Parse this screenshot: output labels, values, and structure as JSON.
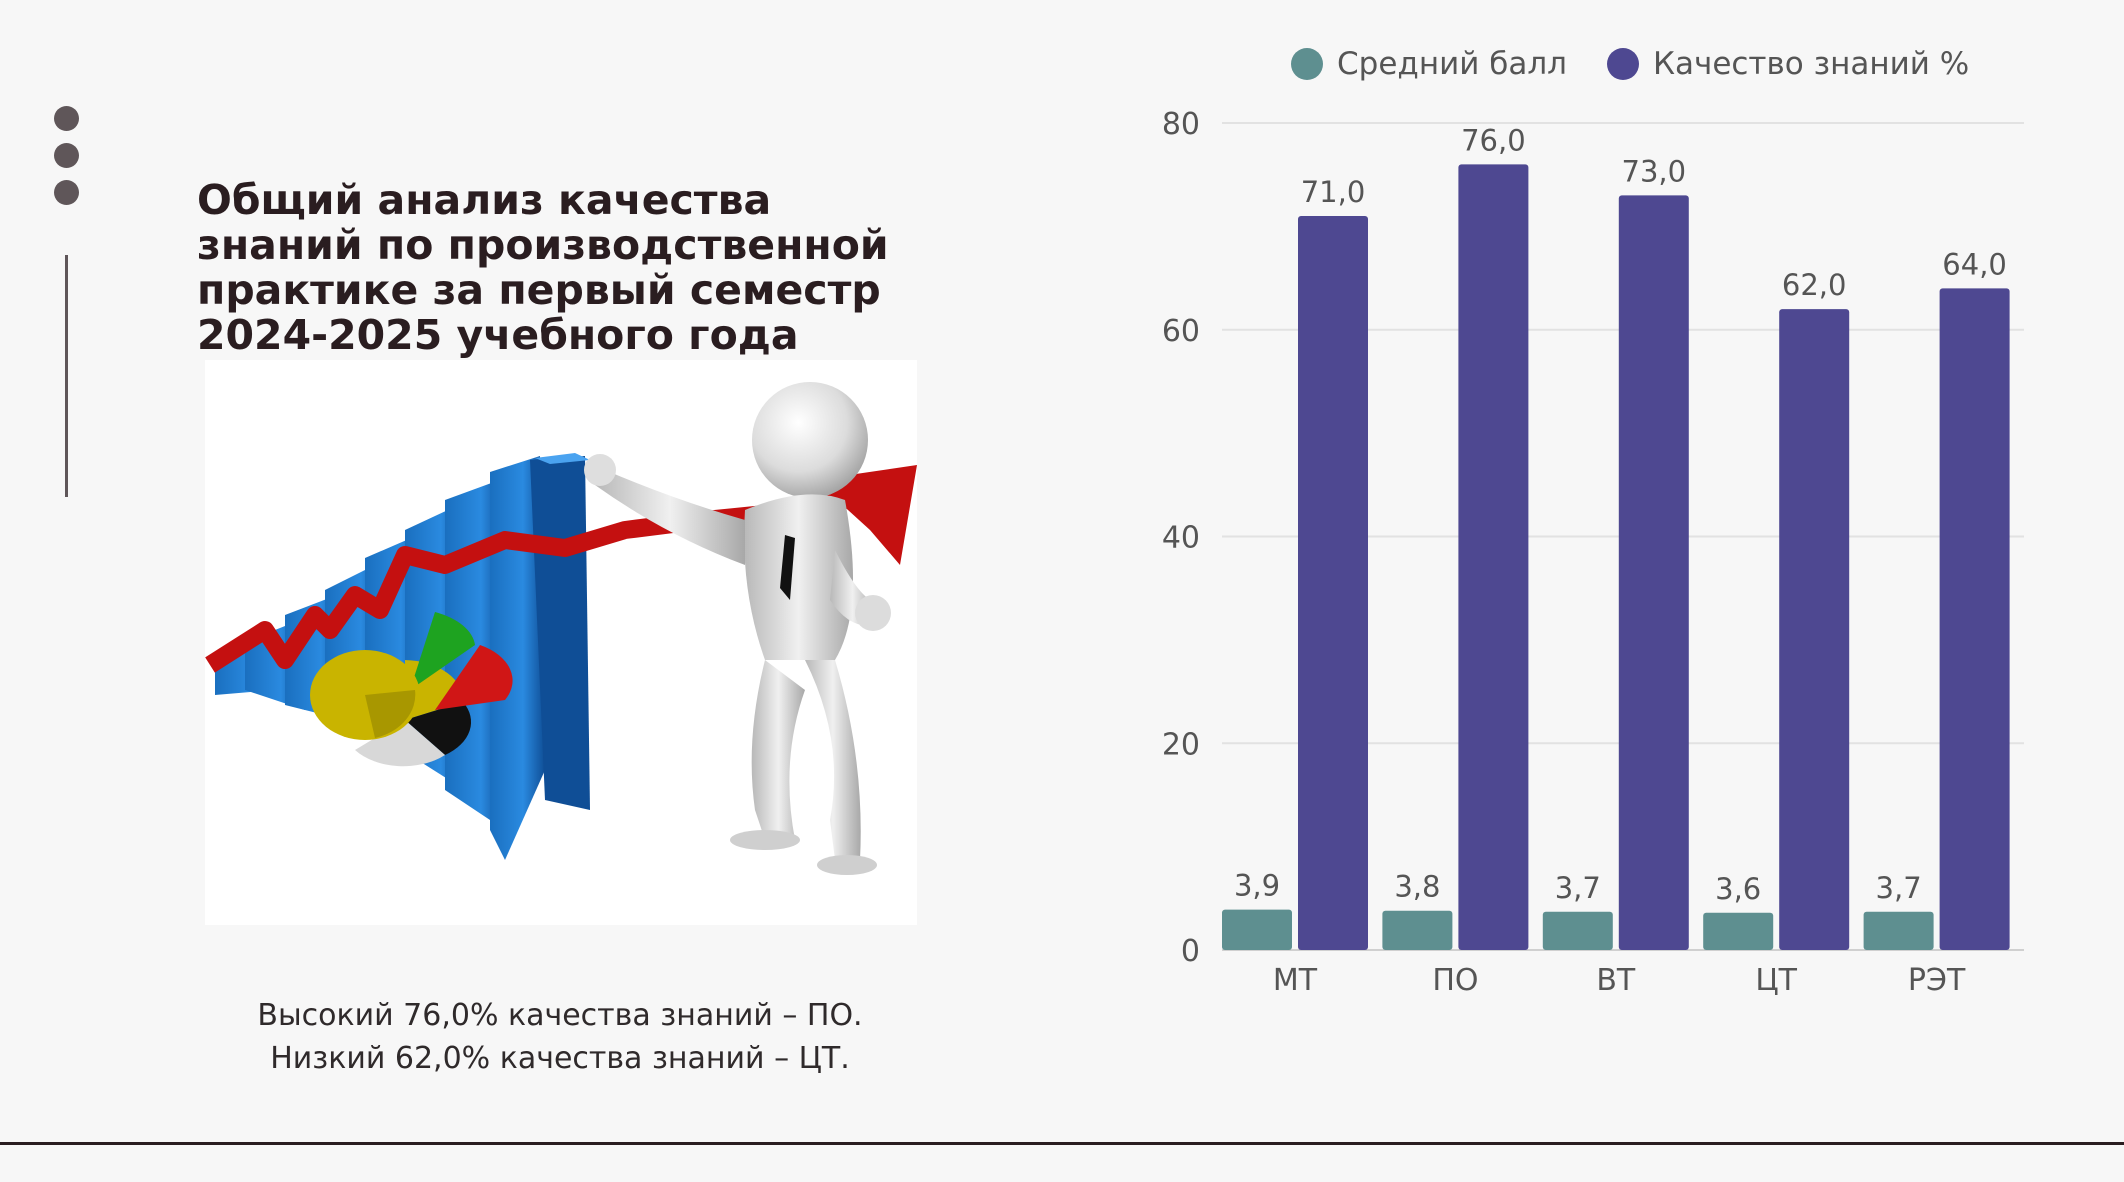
{
  "slide": {
    "title_lines": [
      "Общий анализ качества",
      "знаний по производственной",
      "практике за первый семестр",
      "2024-2025 учебного года"
    ],
    "summary": {
      "line1": "Высокий 76,0% качества знаний – ПО.",
      "line2": "Низкий 62,0% качества знаний – ЦТ."
    },
    "colors": {
      "background": "#f7f7f7",
      "accent_dark": "#2a1d20",
      "dots": "#5f5659"
    }
  },
  "illustration": {
    "icon": "business-growth-illustration",
    "description_icons": [
      "bar-chart-icon",
      "pie-chart-icon",
      "rising-arrow-icon",
      "figure-icon"
    ]
  },
  "chart_data": {
    "type": "bar",
    "categories": [
      "МТ",
      "ПО",
      "ВТ",
      "ЦТ",
      "РЭТ"
    ],
    "series": [
      {
        "name": "Средний балл",
        "values": [
          3.9,
          3.8,
          3.7,
          3.6,
          3.7
        ],
        "labels": [
          "3,9",
          "3,8",
          "3,7",
          "3,6",
          "3,7"
        ],
        "color": "#5e8f90"
      },
      {
        "name": "Качество знаний %",
        "values": [
          71.0,
          76.0,
          73.0,
          62.0,
          64.0
        ],
        "labels": [
          "71,0",
          "76,0",
          "73,0",
          "62,0",
          "64,0"
        ],
        "color": "#4e4891"
      }
    ],
    "ylim": [
      0,
      80
    ],
    "yticks": [
      0,
      20,
      40,
      60,
      80
    ],
    "grid": true,
    "legend": "top",
    "title": "",
    "xlabel": "",
    "ylabel": ""
  }
}
